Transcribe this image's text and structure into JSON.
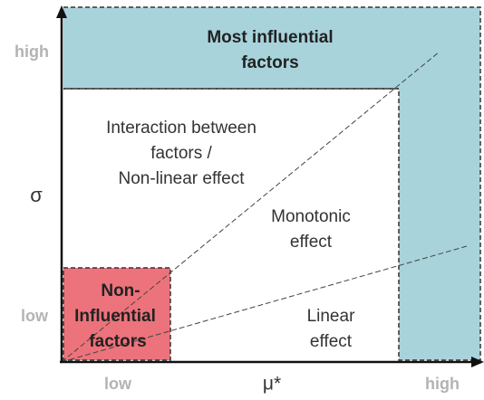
{
  "axes": {
    "y_label": "σ",
    "x_label": "μ*",
    "y_low": "low",
    "y_high": "high",
    "x_low": "low",
    "x_high": "high"
  },
  "regions": {
    "most_influential": [
      "Most influential",
      "factors"
    ],
    "interaction": [
      "Interaction between",
      "factors /",
      "Non-linear effect"
    ],
    "monotonic": [
      "Monotonic",
      "effect"
    ],
    "linear": [
      "Linear",
      "effect"
    ],
    "non_influential": [
      "Non-",
      "Influential",
      "factors"
    ]
  }
}
